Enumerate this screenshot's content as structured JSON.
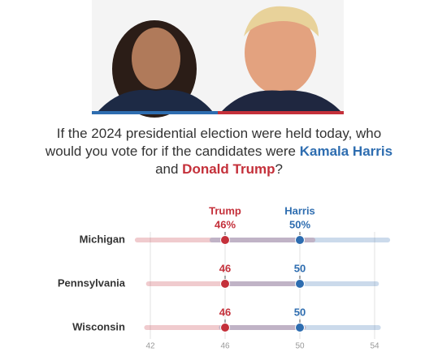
{
  "chart_data": {
    "type": "dotplot",
    "title": [
      "If the 2024 presidential election were held today, who would you vote for if the candidates were",
      "Kamala Harris",
      "and",
      "Donald Trump",
      "?"
    ],
    "categories": [
      "Michigan",
      "Pennsylvania",
      "Wisconsin"
    ],
    "series": [
      {
        "name": "Trump",
        "color": "#c4303a",
        "values": [
          46,
          46,
          46
        ],
        "value_labels": [
          "46%",
          "46",
          "46"
        ],
        "low": [
          41.3,
          41.9,
          41.8
        ],
        "high": [
          50.7,
          50.1,
          50.2
        ]
      },
      {
        "name": "Harris",
        "color": "#2e6db0",
        "values": [
          50,
          50,
          50
        ],
        "value_labels": [
          "50%",
          "50",
          "50"
        ],
        "low": [
          45.3,
          45.9,
          45.8
        ],
        "high": [
          54.7,
          54.1,
          54.2
        ]
      }
    ],
    "xlim": [
      41,
      56
    ],
    "xticks": [
      42,
      46,
      50,
      54
    ],
    "grid": true
  }
}
